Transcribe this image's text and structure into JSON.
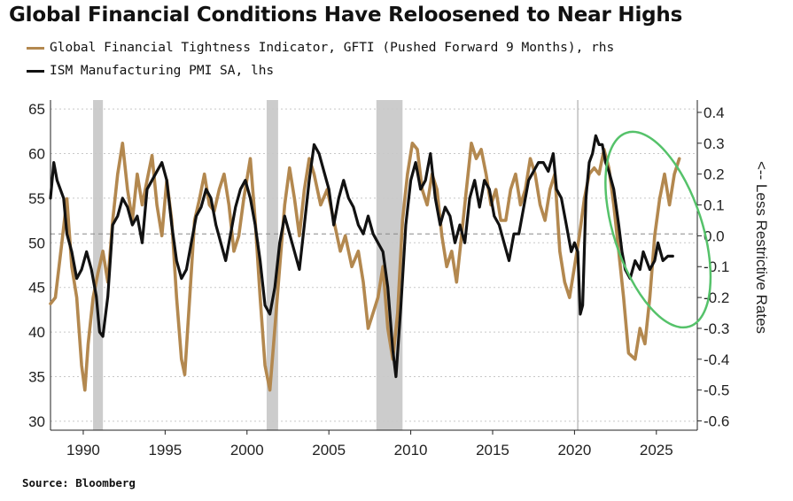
{
  "title": "Global Financial Conditions Have Reloosened to Near Highs",
  "source": "Source: Bloomberg",
  "colors": {
    "gfti": "#b3884f",
    "pmi": "#111111",
    "recession": "#cccccc",
    "highlight": "#55c26a",
    "grid": "#9a9a9a"
  },
  "chart_data": {
    "type": "line",
    "title": "Global Financial Conditions Have Reloosened to Near Highs",
    "right_axis_label": "<-- Less Restrictive Rates",
    "x_ticks": [
      1990,
      1995,
      2000,
      2005,
      2010,
      2015,
      2020,
      2025
    ],
    "x_range": [
      1988,
      2027.5
    ],
    "y_left": {
      "ticks": [
        65,
        60,
        55,
        50,
        45,
        40,
        35,
        30
      ],
      "range": [
        29,
        66
      ]
    },
    "y_right": {
      "ticks": [
        "0.4",
        "0.3",
        "0.2",
        "0.1",
        "0.0",
        "-0.1",
        "-0.2",
        "-0.3",
        "-0.4",
        "-0.5",
        "-0.6"
      ],
      "range": [
        -0.63,
        0.44
      ]
    },
    "grid": "horizontal dashed",
    "reference_lines": {
      "y_left": 51,
      "vertical_x": 2020.2
    },
    "recession_bands": [
      [
        1990.6,
        1991.2
      ],
      [
        2001.2,
        2001.9
      ],
      [
        2007.9,
        2009.5
      ]
    ],
    "highlight_ellipse": {
      "center": [
        2025.1,
        0.02
      ],
      "semi_axes": [
        2.7,
        0.33
      ],
      "rotation_deg": -18
    },
    "series": [
      {
        "name": "Global Financial Tightness Indicator, GFTI (Pushed Forward 9 Months), rhs",
        "axis": "right",
        "points": [
          [
            1988.0,
            -0.22
          ],
          [
            1988.3,
            -0.2
          ],
          [
            1988.7,
            -0.02
          ],
          [
            1989.0,
            0.12
          ],
          [
            1989.3,
            -0.1
          ],
          [
            1989.6,
            -0.2
          ],
          [
            1989.9,
            -0.42
          ],
          [
            1990.1,
            -0.5
          ],
          [
            1990.3,
            -0.35
          ],
          [
            1990.6,
            -0.2
          ],
          [
            1990.9,
            -0.12
          ],
          [
            1991.2,
            -0.05
          ],
          [
            1991.5,
            -0.15
          ],
          [
            1991.8,
            0.05
          ],
          [
            1992.1,
            0.2
          ],
          [
            1992.4,
            0.3
          ],
          [
            1992.7,
            0.15
          ],
          [
            1993.0,
            0.05
          ],
          [
            1993.3,
            0.2
          ],
          [
            1993.6,
            0.1
          ],
          [
            1993.9,
            0.18
          ],
          [
            1994.2,
            0.26
          ],
          [
            1994.5,
            0.1
          ],
          [
            1994.8,
            0.0
          ],
          [
            1995.1,
            0.18
          ],
          [
            1995.4,
            0.05
          ],
          [
            1995.7,
            -0.2
          ],
          [
            1996.0,
            -0.4
          ],
          [
            1996.2,
            -0.45
          ],
          [
            1996.5,
            -0.2
          ],
          [
            1996.8,
            0.05
          ],
          [
            1997.1,
            0.12
          ],
          [
            1997.4,
            0.2
          ],
          [
            1997.7,
            0.1
          ],
          [
            1998.0,
            0.08
          ],
          [
            1998.3,
            0.15
          ],
          [
            1998.6,
            0.2
          ],
          [
            1998.9,
            0.1
          ],
          [
            1999.2,
            -0.05
          ],
          [
            1999.5,
            0.0
          ],
          [
            1999.8,
            0.12
          ],
          [
            2000.2,
            0.25
          ],
          [
            2000.5,
            0.05
          ],
          [
            2000.8,
            -0.2
          ],
          [
            2001.1,
            -0.42
          ],
          [
            2001.4,
            -0.5
          ],
          [
            2001.7,
            -0.3
          ],
          [
            2002.0,
            -0.1
          ],
          [
            2002.3,
            0.1
          ],
          [
            2002.6,
            0.22
          ],
          [
            2002.9,
            0.12
          ],
          [
            2003.2,
            0.0
          ],
          [
            2003.5,
            0.15
          ],
          [
            2003.8,
            0.25
          ],
          [
            2004.1,
            0.2
          ],
          [
            2004.5,
            0.1
          ],
          [
            2004.9,
            0.15
          ],
          [
            2005.3,
            0.05
          ],
          [
            2005.7,
            -0.05
          ],
          [
            2006.0,
            0.0
          ],
          [
            2006.4,
            -0.1
          ],
          [
            2006.8,
            -0.05
          ],
          [
            2007.1,
            -0.15
          ],
          [
            2007.4,
            -0.3
          ],
          [
            2007.7,
            -0.25
          ],
          [
            2008.0,
            -0.2
          ],
          [
            2008.3,
            -0.1
          ],
          [
            2008.6,
            -0.3
          ],
          [
            2008.9,
            -0.4
          ],
          [
            2009.2,
            -0.25
          ],
          [
            2009.5,
            0.05
          ],
          [
            2009.8,
            0.2
          ],
          [
            2010.1,
            0.3
          ],
          [
            2010.4,
            0.28
          ],
          [
            2010.7,
            0.15
          ],
          [
            2011.0,
            0.1
          ],
          [
            2011.3,
            0.2
          ],
          [
            2011.6,
            0.15
          ],
          [
            2011.9,
            0.0
          ],
          [
            2012.2,
            -0.1
          ],
          [
            2012.5,
            -0.05
          ],
          [
            2012.8,
            -0.15
          ],
          [
            2013.1,
            0.0
          ],
          [
            2013.4,
            0.15
          ],
          [
            2013.7,
            0.3
          ],
          [
            2014.0,
            0.25
          ],
          [
            2014.3,
            0.28
          ],
          [
            2014.6,
            0.2
          ],
          [
            2014.9,
            0.1
          ],
          [
            2015.2,
            0.15
          ],
          [
            2015.5,
            0.05
          ],
          [
            2015.8,
            0.05
          ],
          [
            2016.1,
            0.15
          ],
          [
            2016.4,
            0.2
          ],
          [
            2016.7,
            0.1
          ],
          [
            2017.0,
            0.15
          ],
          [
            2017.3,
            0.25
          ],
          [
            2017.6,
            0.2
          ],
          [
            2017.9,
            0.1
          ],
          [
            2018.2,
            0.05
          ],
          [
            2018.5,
            0.15
          ],
          [
            2018.8,
            0.2
          ],
          [
            2019.1,
            -0.05
          ],
          [
            2019.4,
            -0.15
          ],
          [
            2019.7,
            -0.2
          ],
          [
            2020.0,
            -0.1
          ],
          [
            2020.3,
            0.0
          ],
          [
            2020.6,
            0.12
          ],
          [
            2020.9,
            0.2
          ],
          [
            2021.2,
            0.22
          ],
          [
            2021.5,
            0.2
          ],
          [
            2021.8,
            0.28
          ],
          [
            2022.1,
            0.22
          ],
          [
            2022.4,
            0.1
          ],
          [
            2022.7,
            -0.05
          ],
          [
            2023.0,
            -0.2
          ],
          [
            2023.3,
            -0.38
          ],
          [
            2023.7,
            -0.4
          ],
          [
            2024.0,
            -0.3
          ],
          [
            2024.3,
            -0.35
          ],
          [
            2024.6,
            -0.2
          ],
          [
            2024.9,
            0.0
          ],
          [
            2025.2,
            0.12
          ],
          [
            2025.5,
            0.2
          ],
          [
            2025.8,
            0.1
          ],
          [
            2026.1,
            0.2
          ],
          [
            2026.4,
            0.25
          ]
        ]
      },
      {
        "name": "ISM Manufacturing PMI SA, lhs",
        "axis": "left",
        "points": [
          [
            1988.0,
            55
          ],
          [
            1988.2,
            59
          ],
          [
            1988.4,
            57
          ],
          [
            1988.6,
            56
          ],
          [
            1988.8,
            55
          ],
          [
            1989.0,
            51
          ],
          [
            1989.3,
            49
          ],
          [
            1989.6,
            46
          ],
          [
            1989.9,
            47
          ],
          [
            1990.2,
            49
          ],
          [
            1990.5,
            47
          ],
          [
            1990.8,
            44
          ],
          [
            1991.0,
            40
          ],
          [
            1991.2,
            39.5
          ],
          [
            1991.5,
            44
          ],
          [
            1991.8,
            52
          ],
          [
            1992.1,
            53
          ],
          [
            1992.4,
            55
          ],
          [
            1992.7,
            54
          ],
          [
            1993.0,
            52
          ],
          [
            1993.3,
            53
          ],
          [
            1993.6,
            50
          ],
          [
            1993.9,
            56
          ],
          [
            1994.2,
            57
          ],
          [
            1994.5,
            58
          ],
          [
            1994.8,
            59
          ],
          [
            1995.1,
            57
          ],
          [
            1995.4,
            52
          ],
          [
            1995.7,
            48
          ],
          [
            1996.0,
            46
          ],
          [
            1996.3,
            47
          ],
          [
            1996.6,
            50
          ],
          [
            1996.9,
            53
          ],
          [
            1997.2,
            54
          ],
          [
            1997.5,
            56
          ],
          [
            1997.8,
            55
          ],
          [
            1998.1,
            52
          ],
          [
            1998.4,
            50
          ],
          [
            1998.7,
            48
          ],
          [
            1999.0,
            51
          ],
          [
            1999.3,
            54
          ],
          [
            1999.6,
            56
          ],
          [
            1999.9,
            57
          ],
          [
            2000.2,
            55
          ],
          [
            2000.5,
            52
          ],
          [
            2000.8,
            48
          ],
          [
            2001.1,
            43
          ],
          [
            2001.4,
            42
          ],
          [
            2001.7,
            45
          ],
          [
            2002.0,
            50
          ],
          [
            2002.3,
            53
          ],
          [
            2002.6,
            51
          ],
          [
            2002.9,
            49
          ],
          [
            2003.2,
            47
          ],
          [
            2003.5,
            52
          ],
          [
            2003.8,
            57
          ],
          [
            2004.1,
            61
          ],
          [
            2004.4,
            60
          ],
          [
            2004.7,
            58
          ],
          [
            2005.0,
            56
          ],
          [
            2005.3,
            52
          ],
          [
            2005.6,
            55
          ],
          [
            2005.9,
            57
          ],
          [
            2006.2,
            55
          ],
          [
            2006.5,
            54
          ],
          [
            2006.8,
            52
          ],
          [
            2007.1,
            51
          ],
          [
            2007.4,
            53
          ],
          [
            2007.7,
            51
          ],
          [
            2008.0,
            50
          ],
          [
            2008.3,
            49
          ],
          [
            2008.6,
            45
          ],
          [
            2008.9,
            38
          ],
          [
            2009.1,
            35
          ],
          [
            2009.4,
            43
          ],
          [
            2009.7,
            52
          ],
          [
            2010.0,
            57
          ],
          [
            2010.3,
            59
          ],
          [
            2010.6,
            56
          ],
          [
            2010.9,
            57
          ],
          [
            2011.2,
            60
          ],
          [
            2011.5,
            55
          ],
          [
            2011.8,
            52
          ],
          [
            2012.1,
            54
          ],
          [
            2012.4,
            53
          ],
          [
            2012.7,
            50
          ],
          [
            2013.0,
            52
          ],
          [
            2013.3,
            50
          ],
          [
            2013.6,
            55
          ],
          [
            2013.9,
            57
          ],
          [
            2014.2,
            54
          ],
          [
            2014.5,
            57
          ],
          [
            2014.8,
            56
          ],
          [
            2015.1,
            53
          ],
          [
            2015.4,
            52
          ],
          [
            2015.7,
            50
          ],
          [
            2016.0,
            48
          ],
          [
            2016.3,
            51
          ],
          [
            2016.6,
            51
          ],
          [
            2016.9,
            54
          ],
          [
            2017.2,
            57
          ],
          [
            2017.5,
            58
          ],
          [
            2017.8,
            59
          ],
          [
            2018.1,
            59
          ],
          [
            2018.4,
            58
          ],
          [
            2018.7,
            60
          ],
          [
            2018.9,
            56
          ],
          [
            2019.2,
            55
          ],
          [
            2019.5,
            52
          ],
          [
            2019.8,
            49
          ],
          [
            2020.0,
            50
          ],
          [
            2020.2,
            49
          ],
          [
            2020.35,
            42
          ],
          [
            2020.5,
            43
          ],
          [
            2020.7,
            55
          ],
          [
            2020.9,
            59
          ],
          [
            2021.1,
            60
          ],
          [
            2021.3,
            62
          ],
          [
            2021.5,
            61
          ],
          [
            2021.7,
            61
          ],
          [
            2021.9,
            59
          ],
          [
            2022.1,
            58
          ],
          [
            2022.4,
            56
          ],
          [
            2022.7,
            52
          ],
          [
            2022.9,
            49
          ],
          [
            2023.1,
            47
          ],
          [
            2023.4,
            46
          ],
          [
            2023.7,
            48
          ],
          [
            2024.0,
            47
          ],
          [
            2024.2,
            49
          ],
          [
            2024.4,
            48
          ],
          [
            2024.6,
            47
          ],
          [
            2024.9,
            48
          ],
          [
            2025.1,
            50
          ],
          [
            2025.4,
            48
          ],
          [
            2025.7,
            48.5
          ],
          [
            2026.0,
            48.5
          ]
        ]
      }
    ]
  }
}
